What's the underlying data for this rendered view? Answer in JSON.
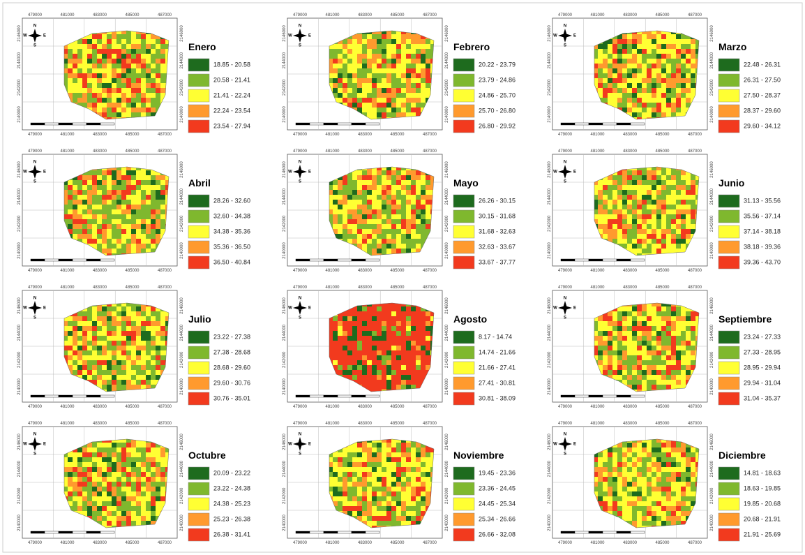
{
  "palette": [
    "#1e6b1e",
    "#7fb82e",
    "#ffff33",
    "#ff9a2e",
    "#f23a1e"
  ],
  "axis": {
    "x": [
      "479000",
      "481000",
      "483000",
      "485000",
      "487000"
    ],
    "y": [
      "2146000",
      "2144000",
      "2142000",
      "2140000"
    ]
  },
  "compass": {
    "n": "N",
    "s": "S",
    "e": "E",
    "w": "W"
  },
  "maps": [
    {
      "title": "Enero",
      "classes": [
        "18.85 - 20.58",
        "20.58 - 21.41",
        "21.41 - 22.24",
        "22.24 - 23.54",
        "23.54 - 27.94"
      ]
    },
    {
      "title": "Febrero",
      "classes": [
        "20.22 - 23.79",
        "23.79 - 24.86",
        "24.86 - 25.70",
        "25.70 - 26.80",
        "26.80 - 29.92"
      ]
    },
    {
      "title": "Marzo",
      "classes": [
        "22.48 - 26.31",
        "26.31 - 27.50",
        "27.50 - 28.37",
        "28.37 - 29.60",
        "29.60 - 34.12"
      ]
    },
    {
      "title": "Abril",
      "classes": [
        "28.26 - 32.60",
        "32.60 - 34.38",
        "34.38 - 35.36",
        "35.36 - 36.50",
        "36.50 - 40.84"
      ]
    },
    {
      "title": "Mayo",
      "classes": [
        "26.26 - 30.15",
        "30.15 - 31.68",
        "31.68 - 32.63",
        "32.63 - 33.67",
        "33.67 - 37.77"
      ]
    },
    {
      "title": "Junio",
      "classes": [
        "31.13 - 35.56",
        "35.56 - 37.14",
        "37.14 - 38.18",
        "38.18 - 39.36",
        "39.36 - 43.70"
      ]
    },
    {
      "title": "Julio",
      "classes": [
        "23.22 - 27.38",
        "27.38 - 28.68",
        "28.68 - 29.60",
        "29.60 - 30.76",
        "30.76 - 35.01"
      ]
    },
    {
      "title": "Agosto",
      "classes": [
        "8.17 - 14.74",
        "14.74 - 21.66",
        "21.66 - 27.41",
        "27.41 - 30.81",
        "30.81 - 38.09"
      ]
    },
    {
      "title": "Septiembre",
      "classes": [
        "23.24 - 27.33",
        "27.33 - 28.95",
        "28.95 - 29.94",
        "29.94 - 31.04",
        "31.04 - 35.37"
      ]
    },
    {
      "title": "Octubre",
      "classes": [
        "20.09 - 23.22",
        "23.22 - 24.38",
        "24.38 - 25.23",
        "25.23 - 26.38",
        "26.38 - 31.41"
      ]
    },
    {
      "title": "Noviembre",
      "classes": [
        "19.45 - 23.36",
        "23.36 - 24.45",
        "24.45 - 25.34",
        "25.34 - 26.66",
        "26.66 - 32.08"
      ]
    },
    {
      "title": "Diciembre",
      "classes": [
        "14.81 - 18.63",
        "18.63 - 19.85",
        "19.85 - 20.68",
        "20.68 - 21.91",
        "21.91 - 25.69"
      ]
    }
  ]
}
